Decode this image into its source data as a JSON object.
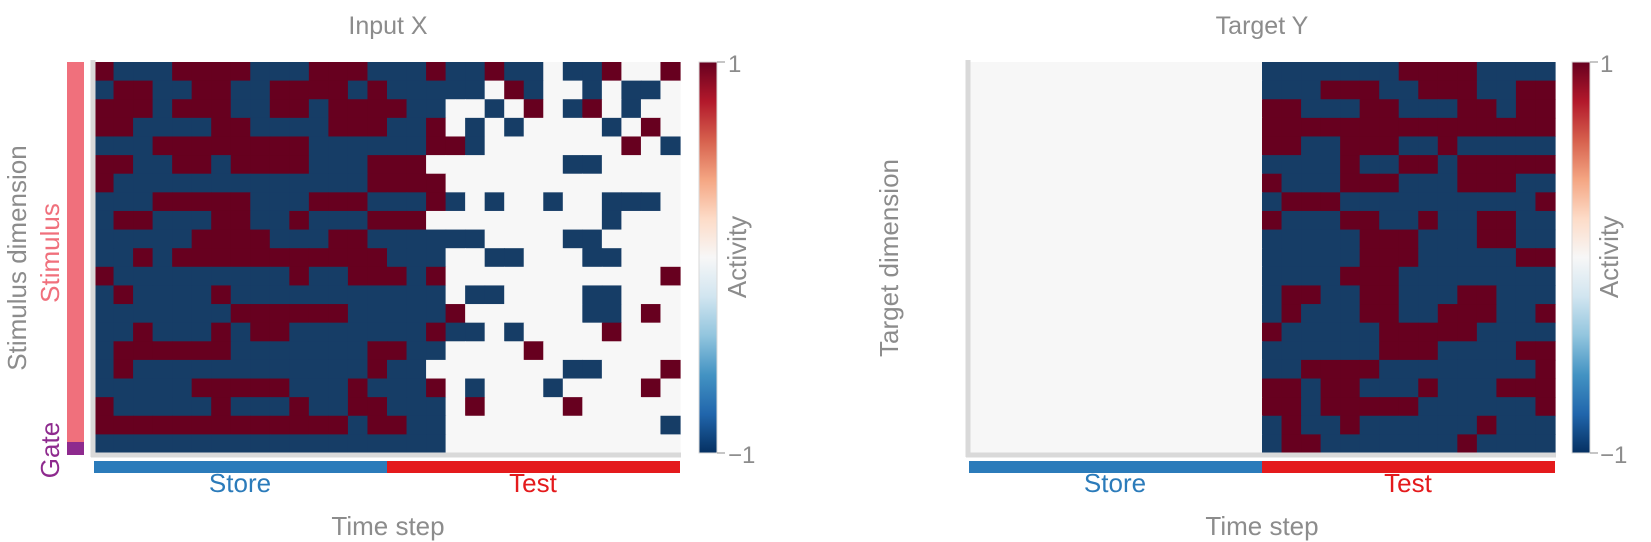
{
  "colors": {
    "text_gray": "#8c8c8c",
    "axis_gray": "#d9d9d9",
    "dark_red": "#67001f",
    "dark_blue": "#163d66",
    "neutral": "#f7f7f7",
    "store_blue": "#2b7bba",
    "test_red": "#e41a1c",
    "stimulus_pink": "#f0707c",
    "gate_purple": "#8e2a8e",
    "colormap": "RdBu_r"
  },
  "chart_data": [
    {
      "type": "heatmap",
      "title": "Input X",
      "xlabel": "Time step",
      "ylabel": "Stimulus dimension",
      "side_labels": {
        "stimulus": "Stimulus",
        "gate": "Gate"
      },
      "phases": [
        {
          "label": "Store"
        },
        {
          "label": "Test"
        }
      ],
      "colorbar": {
        "label": "Activity",
        "max_label": "1",
        "min_label": "−1",
        "range": [
          -1,
          1
        ]
      },
      "grid": false,
      "n_cols": 30,
      "n_stim_rows": 20,
      "gate_rows": 1,
      "values_encoding": "one string per row, one char per time step; 'r' = 1, 'b' = -1, 'n' = 0",
      "rows": [
        "rbbbrrrrbbbrrrbbbrbbrbbnbbrnnr",
        "brrbbrrbbrrrrbrbbbbbnrbnnbnbbn",
        "rrrbrrrbbrrbrrrrbbnnbnrnbrnbnn",
        "rrbbbbrrbbbbrrrbbrnbnbnnnnbnrn",
        "bbbrrrrrrrrbbbbbbrrbnnnnnnnrnb",
        "rrbbrrbrrrrbbbrrrnnnnnnnbbnnnn",
        "rbbbbbbbbbbbbbrrrrnnnnnnnnnnnn",
        "bbbrrrrrbbbrrrbbbrbnbnnbnnbbbn",
        "brrbbbrrbbrbbbrrrnnnnnnnnnbnnn",
        "bbbbbrrrrbbbrrbbbbbbnnnnbbnnnn",
        "bbrbrrrrrrrrrrrbbbnnbbnnnbbnnn",
        "rbbbbbbbbbrbbrrrbrnnnnnnnnnnnr",
        "brbbbbrbbbbbbbbbbbnbbnnnnbbnnn",
        "bbbbbbbrrrrrrbbbbbrnnnnnnbbnrn",
        "bbrbbbrbrrbbbbbbbrbbnbnnnnrnnn",
        "brrrrrrbbbbbbbrrbbnnnnrnnnnnnn",
        "brbbbbbbbbbbbbrbbnnnnnnnbbnnnr",
        "bbbbbrrrrrbbbrbbbrnbnnnbnnnnrn",
        "rbbbbbrbbbrbbrrbbbnrnnnnrnnnnn",
        "rrrrrrrrrrrrrbrrbbnnnnnnnnnnnb",
        "bbbbbbbbbbbbbbbbbbnnnnnnnnnnnn"
      ]
    },
    {
      "type": "heatmap",
      "title": "Target Y",
      "xlabel": "Time step",
      "ylabel": "Target dimension",
      "phases": [
        {
          "label": "Store"
        },
        {
          "label": "Test"
        }
      ],
      "colorbar": {
        "label": "Activity",
        "max_label": "1",
        "min_label": "−1",
        "range": [
          -1,
          1
        ]
      },
      "grid": false,
      "n_cols": 30,
      "values_encoding": "one string per row, one char per time step; 'r' = 1, 'b' = -1, 'n' = 0",
      "rows": [
        "nnnnnnnnnnnnnnnbbbbbbbrrrrbbbb",
        "nnnnnnnnnnnnnnnbbbrrrbbrrrbbrr",
        "nnnnnnnnnnnnnnnrrbbbrrbbbrrbrr",
        "nnnnnnnnnnnnnnnrrrrrrrrrrrrrrr",
        "nnnnnnnnnnnnnnnrrbbrrrbbrbbbbb",
        "nnnnnnnnnnnnnnnbbbbrbbrrbrrrrr",
        "nnnnnnnnnnnnnnnrbbbrrrbbbrrrbb",
        "nnnnnnnnnnnnnnnbrrrbbbbbbbbbbr",
        "nnnnnnnnnnnnnnnrbbbrrbbrbbrrbb",
        "nnnnnnnnnnnnnnnbbbbbrrrbbbrrbb",
        "nnnnnnnnnnnnnnnbbbbbrrrbbbbbrr",
        "nnnnnnnnnnnnnnnbbbbrrrbbbbbbbb",
        "nnnnnnnnnnnnnnnbrrbbrrbbbrrbbb",
        "nnnnnnnnnnnnnnnbrbbbrrbbrrrbbr",
        "nnnnnnnnnnnnnnnrbbbbbrrrrrbbbb",
        "nnnnnnnnnnnnnnnbbbbbbrrrbbbbrr",
        "nnnnnnnnnnnnnnnbbrrrrbbbbbbbbr",
        "nnnnnnnnnnnnnnnrrbrrbbbrbbbrrr",
        "nnnnnnnnnnnnnnnrrbrrrrrbbbbbbr",
        "nnnnnnnnnnnnnnnbrbbrbbbbbbrbbb",
        "nnnnnnnnnnnnnnnbrrbbbbbbbrbbbb"
      ]
    }
  ]
}
